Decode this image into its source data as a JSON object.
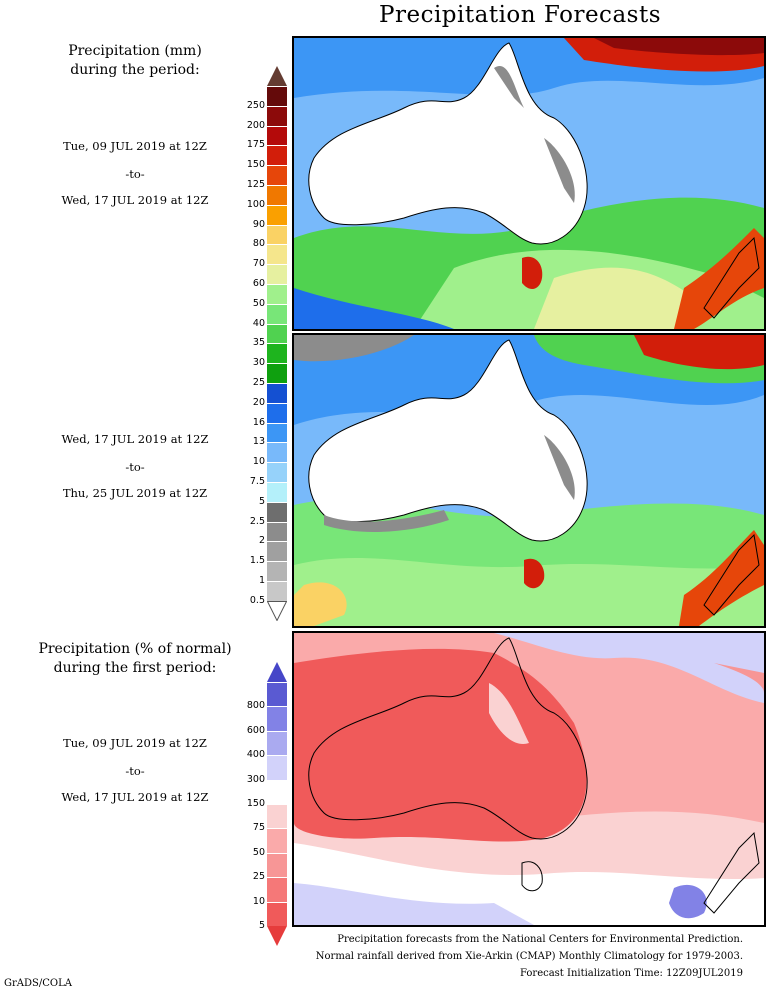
{
  "title": "Precipitation Forecasts",
  "amount_legend": {
    "heading_line1": "Precipitation (mm)",
    "heading_line2": "during the period:",
    "levels": [
      "0.5",
      "1",
      "1.5",
      "2",
      "2.5",
      "5",
      "7.5",
      "10",
      "13",
      "16",
      "20",
      "25",
      "30",
      "35",
      "40",
      "50",
      "60",
      "70",
      "80",
      "90",
      "100",
      "125",
      "150",
      "175",
      "200",
      "250"
    ],
    "colors": [
      "#c8c8c8",
      "#b4b4b4",
      "#a0a0a0",
      "#8c8c8c",
      "#6e6e6e",
      "#b4f0fa",
      "#96d2fa",
      "#78b9fa",
      "#3c96f5",
      "#1e6eeb",
      "#1450d2",
      "#0fa00f",
      "#1eb41e",
      "#50d250",
      "#78e678",
      "#a0f08c",
      "#e6f0a0",
      "#f5e68c",
      "#fad264",
      "#faa000",
      "#f07800",
      "#e6460a",
      "#d21e0a",
      "#b40a0a",
      "#8c0a0a",
      "#640a0a"
    ],
    "top_arrow_color": "#643c32"
  },
  "period1": {
    "start": "Tue, 09 JUL 2019 at 12Z",
    "sep": "-to-",
    "end": "Wed, 17 JUL 2019 at 12Z"
  },
  "period2": {
    "start": "Wed, 17 JUL 2019 at 12Z",
    "sep": "-to-",
    "end": "Thu, 25 JUL 2019 at 12Z"
  },
  "anomaly_legend": {
    "heading_line1": "Precipitation (% of normal)",
    "heading_line2": "during the first period:",
    "levels": [
      "5",
      "10",
      "25",
      "50",
      "75",
      "150",
      "300",
      "400",
      "600",
      "800"
    ],
    "colors": [
      "#f05a5a",
      "#f57878",
      "#f79696",
      "#faaaaa",
      "#fad2d2",
      "#ffffff",
      "#d2d2fa",
      "#aaaaf0",
      "#8282e6",
      "#5a5ad2"
    ],
    "bottom_arrow_color": "#e63c3c",
    "top_arrow_color": "#4646c8"
  },
  "period3": {
    "start": "Tue, 09 JUL 2019 at 12Z",
    "sep": "-to-",
    "end": "Wed, 17 JUL 2019 at 12Z"
  },
  "footer": {
    "line1": "Precipitation forecasts from the National Centers for Environmental Prediction.",
    "line2": "Normal rainfall derived from Xie-Arkin (CMAP) Monthly Climatology for 1979-2003.",
    "line3": "Forecast Initialization Time: 12Z09JUL2019"
  },
  "credit": "GrADS/COLA"
}
